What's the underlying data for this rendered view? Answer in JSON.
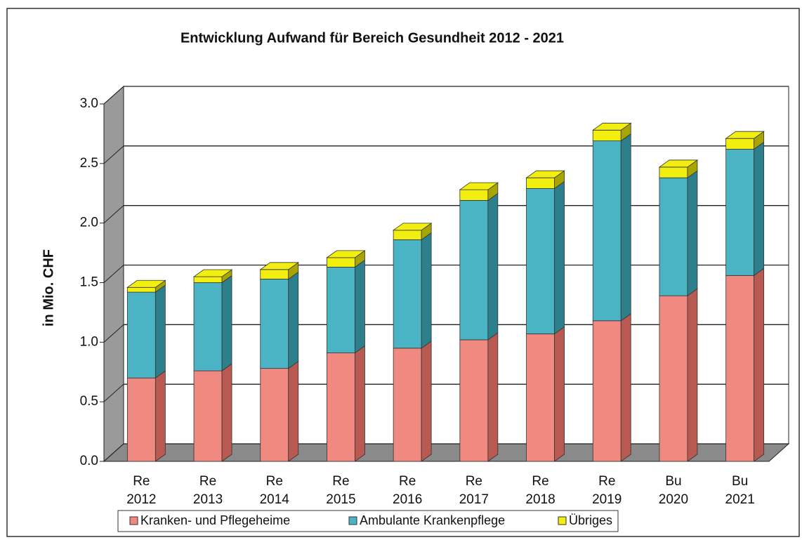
{
  "chart_data": {
    "type": "bar3d_stacked",
    "title": "Entwicklung Aufwand für Bereich Gesundheit 2012 - 2021",
    "y_label": "in Mio. CHF",
    "categories": [
      [
        "Re",
        "2012"
      ],
      [
        "Re",
        "2013"
      ],
      [
        "Re",
        "2014"
      ],
      [
        "Re",
        "2015"
      ],
      [
        "Re",
        "2016"
      ],
      [
        "Re",
        "2017"
      ],
      [
        "Re",
        "2018"
      ],
      [
        "Re",
        "2019"
      ],
      [
        "Bu",
        "2020"
      ],
      [
        "Bu",
        "2021"
      ]
    ],
    "series": [
      {
        "name": "Kranken- und Pflegeheime",
        "color": "#f08a80",
        "side": "#b85a52",
        "values": [
          0.7,
          0.76,
          0.78,
          0.91,
          0.95,
          1.02,
          1.07,
          1.18,
          1.39,
          1.56
        ]
      },
      {
        "name": "Ambulante Krankenpflege",
        "color": "#4bb4c4",
        "side": "#2e7f8c",
        "values": [
          0.72,
          0.74,
          0.75,
          0.72,
          0.91,
          1.17,
          1.22,
          1.51,
          0.99,
          1.06
        ]
      },
      {
        "name": "Übriges",
        "color": "#f2ee10",
        "side": "#a8a400",
        "values": [
          0.04,
          0.05,
          0.08,
          0.08,
          0.08,
          0.09,
          0.09,
          0.09,
          0.09,
          0.09
        ]
      }
    ],
    "ylim": [
      0,
      3
    ],
    "yticks": [
      {
        "value": 0,
        "label": "0.0"
      },
      {
        "value": 0.5,
        "label": "0.5"
      },
      {
        "value": 1,
        "label": "1.0"
      },
      {
        "value": 1.5,
        "label": "1.5"
      },
      {
        "value": 2,
        "label": "2.0"
      },
      {
        "value": 2.5,
        "label": "2.5"
      },
      {
        "value": 3,
        "label": "3.0"
      }
    ],
    "grid": true
  }
}
